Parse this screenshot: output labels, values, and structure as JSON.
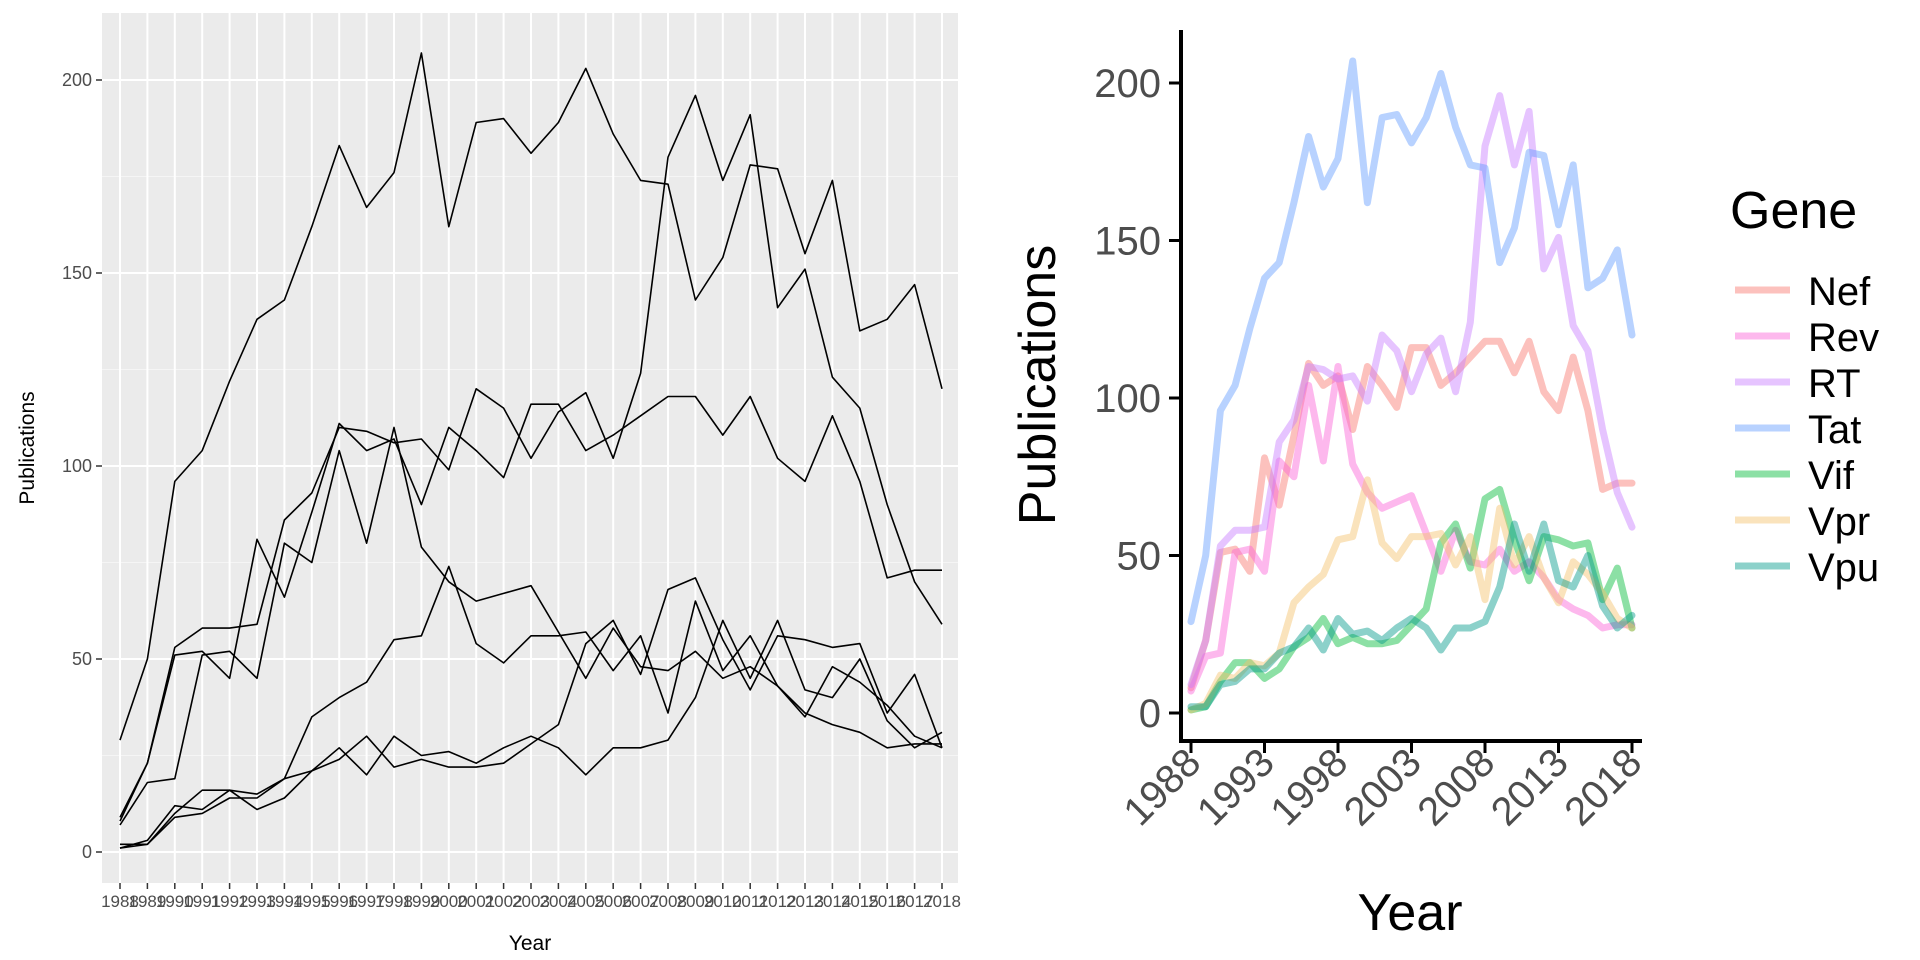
{
  "chart_data": [
    {
      "type": "line",
      "style": "ggplot-grey",
      "xlabel": "Year",
      "ylabel": "Publications",
      "xlim": [
        1988,
        2018
      ],
      "ylim": [
        0,
        210
      ],
      "x_ticks": [
        1988,
        1989,
        1990,
        1991,
        1992,
        1993,
        1994,
        1995,
        1996,
        1997,
        1998,
        1999,
        2000,
        2001,
        2002,
        2003,
        2004,
        2005,
        2006,
        2007,
        2008,
        2009,
        2010,
        2011,
        2012,
        2013,
        2014,
        2015,
        2016,
        2017,
        2018
      ],
      "y_ticks": [
        0,
        50,
        100,
        150,
        200
      ],
      "grid": true,
      "line_color": "#000000",
      "legend": "none",
      "series_ref": "shared"
    },
    {
      "type": "line",
      "style": "classic",
      "xlabel": "Year",
      "ylabel": "Publications",
      "xlim": [
        1988,
        2018
      ],
      "ylim": [
        0,
        210
      ],
      "x_ticks": [
        1988,
        1993,
        1998,
        2003,
        2008,
        2013,
        2018
      ],
      "y_ticks": [
        0,
        50,
        100,
        150,
        200
      ],
      "grid": false,
      "legend": "right",
      "legend_title": "Gene",
      "series_ref": "shared"
    }
  ],
  "shared_series": {
    "x": [
      1988,
      1989,
      1990,
      1991,
      1992,
      1993,
      1994,
      1995,
      1996,
      1997,
      1998,
      1999,
      2000,
      2001,
      2002,
      2003,
      2004,
      2005,
      2006,
      2007,
      2008,
      2009,
      2010,
      2011,
      2012,
      2013,
      2014,
      2015,
      2016,
      2017,
      2018
    ],
    "series": [
      {
        "name": "Nef",
        "color": "#F8766D",
        "values": [
          8,
          23,
          51,
          52,
          45,
          81,
          66,
          88,
          111,
          104,
          107,
          90,
          110,
          104,
          97,
          116,
          116,
          104,
          108,
          113,
          118,
          118,
          108,
          118,
          102,
          96,
          113,
          96,
          71,
          73,
          73
        ]
      },
      {
        "name": "Rev",
        "color": "#FB61D7",
        "values": [
          7,
          18,
          19,
          51,
          52,
          45,
          80,
          75,
          104,
          80,
          110,
          79,
          70,
          65,
          67,
          69,
          57,
          45,
          58,
          48,
          47,
          52,
          45,
          48,
          43,
          36,
          33,
          31,
          27,
          28,
          28
        ]
      },
      {
        "name": "RT",
        "color": "#C77CFF",
        "values": [
          9,
          23,
          53,
          58,
          58,
          59,
          86,
          93,
          110,
          109,
          106,
          107,
          99,
          120,
          115,
          102,
          114,
          119,
          102,
          124,
          180,
          196,
          174,
          191,
          141,
          151,
          123,
          115,
          90,
          70,
          59
        ]
      },
      {
        "name": "Tat",
        "color": "#619CFF",
        "values": [
          29,
          50,
          96,
          104,
          122,
          138,
          143,
          162,
          183,
          167,
          176,
          207,
          162,
          189,
          190,
          181,
          189,
          203,
          186,
          174,
          173,
          143,
          154,
          178,
          177,
          155,
          174,
          135,
          138,
          147,
          120
        ]
      },
      {
        "name": "Vif",
        "color": "#00BA38",
        "values": [
          1,
          2,
          10,
          16,
          16,
          11,
          14,
          21,
          24,
          30,
          22,
          24,
          22,
          22,
          23,
          28,
          33,
          54,
          60,
          46,
          68,
          71,
          55,
          42,
          56,
          55,
          53,
          54,
          36,
          46,
          27
        ]
      },
      {
        "name": "Vpr",
        "color": "#F5C06A",
        "values": [
          1,
          3,
          12,
          11,
          16,
          15,
          19,
          35,
          40,
          44,
          55,
          56,
          74,
          54,
          49,
          56,
          56,
          57,
          47,
          56,
          36,
          65,
          47,
          56,
          43,
          35,
          48,
          44,
          38,
          30,
          27
        ]
      },
      {
        "name": "Vpu",
        "color": "#00998A",
        "values": [
          2,
          2,
          9,
          10,
          14,
          14,
          19,
          21,
          27,
          20,
          30,
          25,
          26,
          23,
          27,
          30,
          27,
          20,
          27,
          27,
          29,
          40,
          60,
          45,
          60,
          42,
          40,
          50,
          34,
          27,
          31
        ]
      }
    ]
  }
}
